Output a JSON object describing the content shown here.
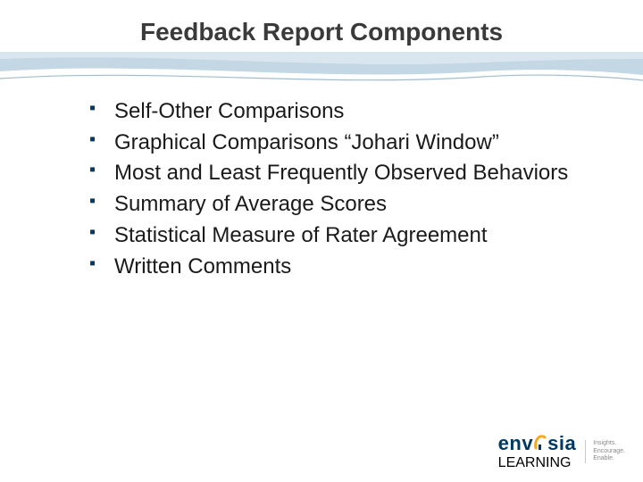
{
  "title": {
    "text": "Feedback Report Components",
    "fontsize": 28,
    "color": "#3a3a3a"
  },
  "wave": {
    "topColor": "#d9e6ef",
    "midColor": "#c3d7e4",
    "lineColor": "#9fbdd0"
  },
  "bullets": {
    "items": [
      "Self-Other Comparisons",
      "Graphical Comparisons “Johari Window”",
      "Most and Least Frequently Observed Behaviors",
      "Summary of Average Scores",
      "Statistical Measure of Rater Agreement",
      "Written Comments"
    ],
    "fontsize": 24,
    "marker_color": "#003a63",
    "text_color": "#1a1a1a"
  },
  "logo": {
    "brand_prefix": "env",
    "brand_suffix": "sia",
    "subtext": "LEARNING",
    "arc_color": "#f5a623",
    "main_color": "#003a63",
    "sub_color": "#5f7fa0"
  },
  "tagline": {
    "line1": "Insights.",
    "line2": "Encourage.",
    "line3": "Enable.",
    "color": "#8a8a8a"
  }
}
